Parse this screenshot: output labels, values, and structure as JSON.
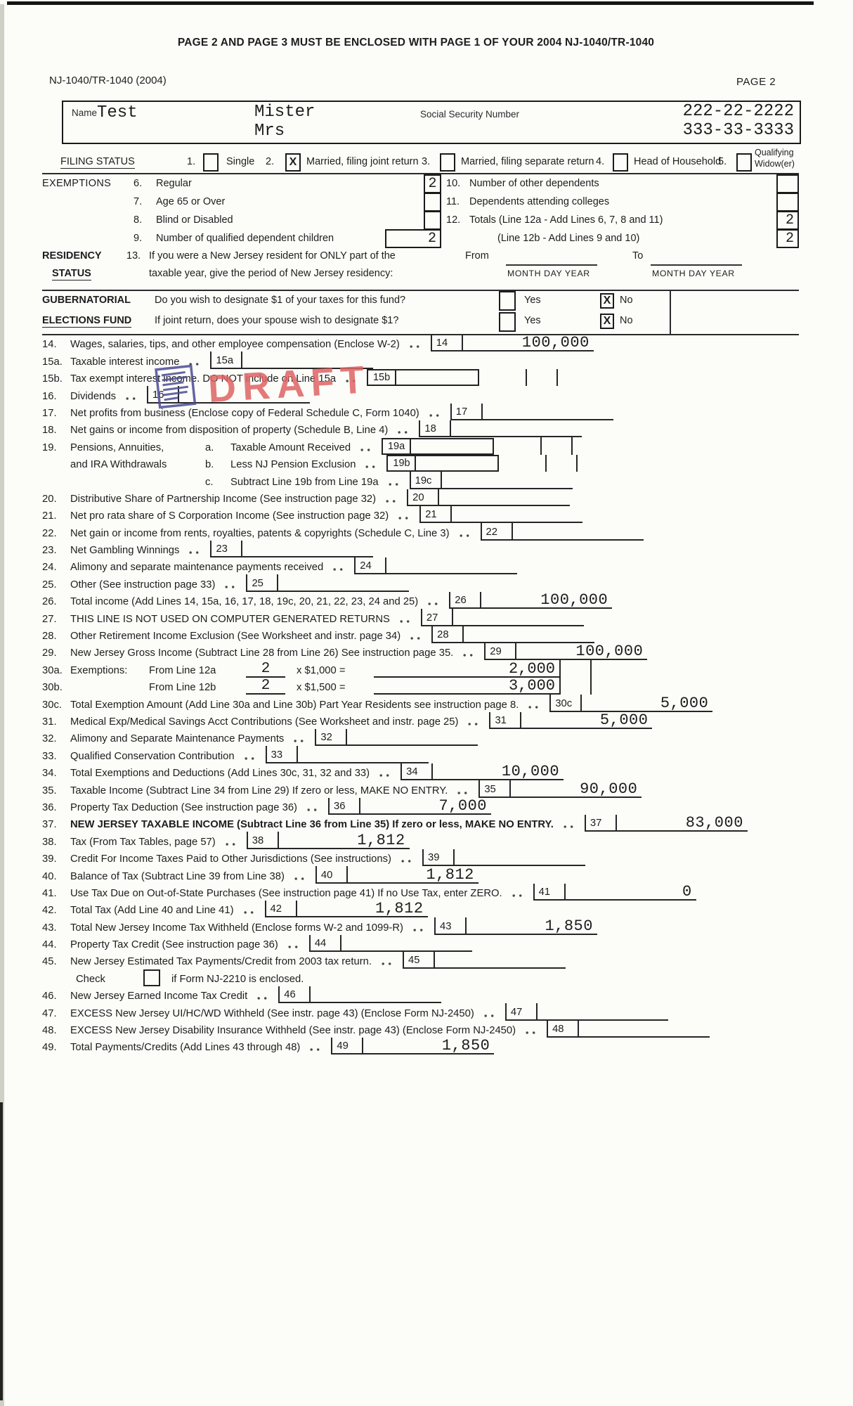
{
  "page": {
    "top_notice": "PAGE 2 AND PAGE 3 MUST BE ENCLOSED WITH PAGE 1 OF YOUR 2004 NJ-1040/TR-1040",
    "form_id": "NJ-1040/TR-1040 (2004)",
    "page_label": "PAGE 2"
  },
  "name_box": {
    "name_label": "Name",
    "last_name": "Test",
    "first_name": "Mister",
    "spouse_name": "Mrs",
    "ssn_label": "Social Security Number",
    "ssn_primary": "222-22-2222",
    "ssn_spouse": "333-33-3333"
  },
  "filing_status": {
    "section_label": "FILING STATUS",
    "options": [
      {
        "num": "1.",
        "label": "Single",
        "checked": false
      },
      {
        "num": "2.",
        "label": "Married, filing joint return",
        "checked": true
      },
      {
        "num": "3.",
        "label": "Married, filing separate return",
        "checked": false
      },
      {
        "num": "4.",
        "label": "Head of Household",
        "checked": false
      },
      {
        "num": "5.",
        "label": "Qualifying Widow(er)",
        "label_line1": "Qualifying",
        "label_line2": "Widow(er)",
        "checked": false
      }
    ]
  },
  "exemptions": {
    "section_label": "EXEMPTIONS",
    "left_items": [
      {
        "num": "6.",
        "label": "Regular",
        "value": "2"
      },
      {
        "num": "7.",
        "label": "Age 65 or Over",
        "value": ""
      },
      {
        "num": "8.",
        "label": "Blind or Disabled",
        "value": ""
      },
      {
        "num": "9.",
        "label": "Number of qualified dependent children",
        "value": "2"
      }
    ],
    "right_items": [
      {
        "num": "10.",
        "label": "Number of other dependents",
        "value": ""
      },
      {
        "num": "11.",
        "label": "Dependents attending colleges",
        "value": ""
      },
      {
        "num": "12.",
        "label": "Totals  (Line 12a - Add Lines 6, 7, 8 and 11)",
        "value": "2"
      },
      {
        "num": "",
        "label": "(Line 12b - Add Lines 9 and 10)",
        "value": "2"
      }
    ]
  },
  "residency": {
    "label_line1": "RESIDENCY",
    "label_line2": "STATUS",
    "line_num": "13.",
    "text_line1": "If you were a New Jersey resident for ONLY part of the",
    "text_line2": "taxable year, give the period of New Jersey residency:",
    "from_label": "From",
    "to_label": "To",
    "mdy": "MONTH  DAY   YEAR"
  },
  "elections_fund": {
    "label_line1": "GUBERNATORIAL",
    "label_line2": "ELECTIONS FUND",
    "question1": "Do you wish to designate $1 of your taxes for this fund?",
    "question2": "If joint return, does your spouse wish to designate $1?",
    "yes_label": "Yes",
    "no_label": "No",
    "q1_yes_checked": false,
    "q1_no_checked": true,
    "q2_yes_checked": false,
    "q2_no_checked": true
  },
  "draft_stamp": {
    "text": "DRAFT",
    "color": "#df6464",
    "icon_color": "#4b4b97"
  },
  "lines": [
    {
      "t": "std",
      "num": "14.",
      "label": "Wages, salaries, tips, and other employee compensation (Enclose W-2)",
      "box": "14",
      "amount": "100,000",
      "line": true
    },
    {
      "t": "std",
      "num": "15a.",
      "label": "Taxable interest income",
      "box": "15a",
      "amount": "",
      "line": true
    },
    {
      "t": "mid",
      "num": "15b.",
      "label": "Tax exempt interest income. DO NOT include on Line 15a",
      "tag": "15b"
    },
    {
      "t": "std",
      "num": "16.",
      "label": "Dividends",
      "box": "16",
      "amount": "",
      "line": true
    },
    {
      "t": "std",
      "num": "17.",
      "label": "Net profits from business (Enclose copy of Federal Schedule C, Form 1040)",
      "box": "17",
      "amount": "",
      "line": true
    },
    {
      "t": "std",
      "num": "18.",
      "label": "Net gains or income from disposition of property (Schedule B, Line 4)",
      "box": "18",
      "amount": "",
      "line": true
    },
    {
      "t": "sub",
      "num": "19.",
      "col1": "Pensions, Annuities,",
      "sub": "a.",
      "label": "Taxable Amount Received",
      "tag": "19a"
    },
    {
      "t": "sub",
      "num": "",
      "col1": "and IRA Withdrawals",
      "sub": "b.",
      "label": "Less NJ Pension Exclusion",
      "tag": "19b"
    },
    {
      "t": "subc",
      "num": "",
      "sub": "c.",
      "label": "Subtract Line 19b from Line 19a",
      "box": "19c",
      "amount": "",
      "line": true
    },
    {
      "t": "std",
      "num": "20.",
      "label": "Distributive Share of Partnership Income (See instruction page 32)",
      "box": "20",
      "amount": "",
      "line": true
    },
    {
      "t": "std",
      "num": "21.",
      "label": "Net pro rata share of S Corporation Income (See instruction page 32)",
      "box": "21",
      "amount": "",
      "line": true
    },
    {
      "t": "std",
      "num": "22.",
      "label": "Net gain or income from rents, royalties, patents & copyrights (Schedule C, Line 3)",
      "box": "22",
      "amount": "",
      "line": true
    },
    {
      "t": "std",
      "num": "23.",
      "label": "Net Gambling Winnings",
      "box": "23",
      "amount": "",
      "line": true
    },
    {
      "t": "std",
      "num": "24.",
      "label": "Alimony and separate maintenance payments received",
      "box": "24",
      "amount": "",
      "line": true
    },
    {
      "t": "std",
      "num": "25.",
      "label": "Other (See instruction page 33)",
      "box": "25",
      "amount": "",
      "line": true
    },
    {
      "t": "std",
      "num": "26.",
      "label": "Total income (Add Lines 14, 15a, 16, 17, 18, 19c, 20, 21, 22, 23, 24 and 25)",
      "box": "26",
      "amount": "100,000",
      "line": true
    },
    {
      "t": "std",
      "num": "27.",
      "label": "THIS LINE IS NOT USED ON COMPUTER GENERATED RETURNS",
      "box": "27",
      "amount": "",
      "line": true
    },
    {
      "t": "std",
      "num": "28.",
      "label": "Other Retirement Income Exclusion (See Worksheet and instr. page 34)",
      "box": "28",
      "amount": "",
      "line": true
    },
    {
      "t": "std",
      "num": "29.",
      "label": "New Jersey Gross Income (Subtract Line 28 from Line 26) See instruction page 35.",
      "box": "29",
      "amount": "100,000",
      "line": true
    },
    {
      "t": "ex",
      "num": "30a.",
      "label": "Exemptions:",
      "from": "From Line 12a",
      "count": "2",
      "mult": "x $1,000 =",
      "amount": "2,000"
    },
    {
      "t": "ex",
      "num": "30b.",
      "label": "",
      "from": "From Line 12b",
      "count": "2",
      "mult": "x $1,500 =",
      "amount": "3,000"
    },
    {
      "t": "std",
      "num": "30c.",
      "label": "Total Exemption Amount (Add Line 30a and Line 30b) Part Year Residents see instruction page 8.",
      "box": "30c",
      "amount": "5,000",
      "line": true
    },
    {
      "t": "std",
      "num": "31.",
      "label": "Medical Exp/Medical Savings Acct Contributions (See Worksheet and instr. page 25)",
      "box": "31",
      "amount": "5,000",
      "line": true
    },
    {
      "t": "std",
      "num": "32.",
      "label": "Alimony and Separate Maintenance Payments",
      "box": "32",
      "amount": "",
      "line": true
    },
    {
      "t": "std",
      "num": "33.",
      "label": "Qualified Conservation Contribution",
      "box": "33",
      "amount": "",
      "line": true
    },
    {
      "t": "std",
      "num": "34.",
      "label": "Total Exemptions and Deductions (Add Lines 30c, 31, 32 and 33)",
      "box": "34",
      "amount": "10,000",
      "line": true
    },
    {
      "t": "std",
      "num": "35.",
      "label": "Taxable Income (Subtract Line 34 from Line 29) If zero or less, MAKE NO ENTRY.",
      "box": "35",
      "amount": "90,000",
      "line": true
    },
    {
      "t": "std",
      "num": "36.",
      "label": "Property Tax Deduction (See instruction page 36)",
      "box": "36",
      "amount": "7,000",
      "line": true
    },
    {
      "t": "std",
      "num": "37.",
      "label": "NEW JERSEY TAXABLE INCOME (Subtract Line 36 from Line 35) If zero or less, MAKE NO ENTRY.",
      "box": "37",
      "amount": "83,000",
      "line": true,
      "bold": true
    },
    {
      "t": "std",
      "num": "38.",
      "label": "Tax (From Tax Tables, page 57)",
      "box": "38",
      "amount": "1,812",
      "line": true
    },
    {
      "t": "std",
      "num": "39.",
      "label": "Credit For Income Taxes Paid to Other Jurisdictions (See instructions)",
      "box": "39",
      "amount": "",
      "line": true
    },
    {
      "t": "std",
      "num": "40.",
      "label": "Balance of Tax (Subtract Line 39 from Line 38)",
      "box": "40",
      "amount": "1,812",
      "line": true
    },
    {
      "t": "std",
      "num": "41.",
      "label": "Use Tax Due on Out-of-State Purchases (See instruction page 41) If no Use Tax, enter ZERO.",
      "box": "41",
      "amount": "0",
      "line": true
    },
    {
      "t": "std",
      "num": "42.",
      "label": "Total Tax (Add Line 40 and Line 41)",
      "box": "42",
      "amount": "1,812",
      "line": true
    },
    {
      "t": "std",
      "num": "43.",
      "label": "Total New Jersey Income Tax Withheld (Enclose forms W-2 and 1099-R)",
      "box": "43",
      "amount": "1,850",
      "line": true
    },
    {
      "t": "std",
      "num": "44.",
      "label": "Property Tax Credit (See instruction page 36)",
      "box": "44",
      "amount": "",
      "line": true
    },
    {
      "t": "std",
      "num": "45.",
      "label": "New Jersey Estimated Tax Payments/Credit from 2003 tax return.",
      "box": "45",
      "amount": "",
      "line": true
    },
    {
      "t": "check",
      "label1": "Check",
      "label2": "if Form NJ-2210 is enclosed.",
      "checked": false
    },
    {
      "t": "std",
      "num": "46.",
      "label": "New Jersey Earned Income Tax Credit",
      "box": "46",
      "amount": "",
      "line": true
    },
    {
      "t": "std",
      "num": "47.",
      "label": "EXCESS New Jersey UI/HC/WD Withheld (See instr. page 43) (Enclose Form NJ-2450)",
      "box": "47",
      "amount": "",
      "line": true
    },
    {
      "t": "std",
      "num": "48.",
      "label": "EXCESS New Jersey Disability Insurance Withheld (See instr. page 43) (Enclose Form NJ-2450)",
      "box": "48",
      "amount": "",
      "line": true
    },
    {
      "t": "std",
      "num": "49.",
      "label": "Total Payments/Credits (Add Lines 43 through 48)",
      "box": "49",
      "amount": "1,850",
      "line": true
    }
  ]
}
